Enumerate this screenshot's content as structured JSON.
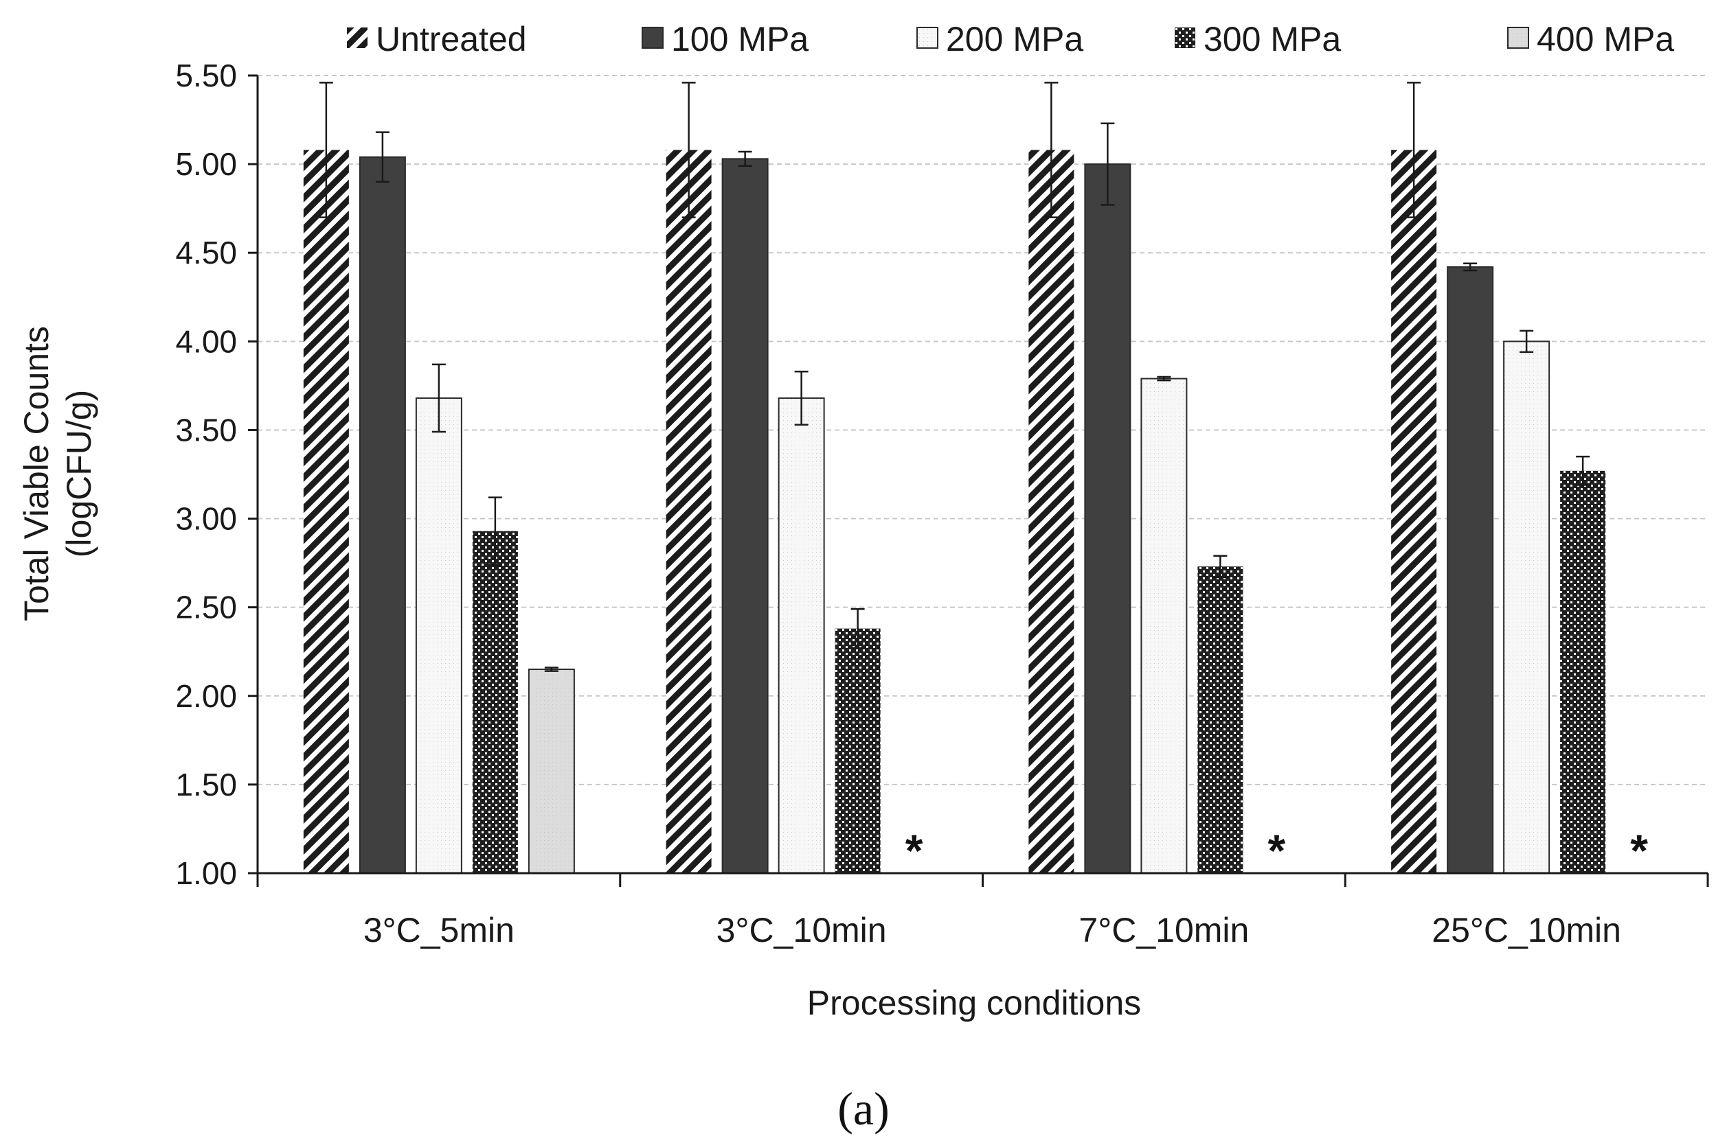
{
  "chart_data": {
    "type": "bar",
    "title": "",
    "xlabel": "Processing conditions",
    "ylabel_line1": "Total  Viable Counts",
    "ylabel_line2": "(logCFU/g)",
    "ylim": [
      1.0,
      5.5
    ],
    "yticks": [
      "1.00",
      "1.50",
      "2.00",
      "2.50",
      "3.00",
      "3.50",
      "4.00",
      "4.50",
      "5.00",
      "5.50"
    ],
    "grid": "horizontal dashed",
    "legend_position": "top",
    "categories": [
      "3°C_5min",
      "3°C_10min",
      "7°C_10min",
      "25°C_10min"
    ],
    "series": [
      {
        "name": "Untreated",
        "pattern": "diagonal",
        "values": [
          5.08,
          5.08,
          5.08,
          5.08
        ],
        "errors": [
          0.38,
          0.38,
          0.38,
          0.38
        ]
      },
      {
        "name": "100 MPa",
        "pattern": "solid-dark",
        "values": [
          5.04,
          5.03,
          5.0,
          4.42
        ],
        "errors": [
          0.14,
          0.04,
          0.23,
          0.02
        ]
      },
      {
        "name": "200 MPa",
        "pattern": "light",
        "values": [
          3.68,
          3.68,
          3.79,
          4.0
        ],
        "errors": [
          0.19,
          0.15,
          0.01,
          0.06
        ]
      },
      {
        "name": "300 MPa",
        "pattern": "checker",
        "values": [
          2.93,
          2.38,
          2.73,
          3.27
        ],
        "errors": [
          0.19,
          0.11,
          0.06,
          0.08
        ]
      },
      {
        "name": "400 MPa",
        "pattern": "light-grey",
        "values": [
          2.15,
          null,
          null,
          null
        ],
        "errors": [
          0.01,
          null,
          null,
          null
        ]
      }
    ],
    "annotations": {
      "below_detection_marker": "*"
    },
    "caption": "(a)"
  }
}
